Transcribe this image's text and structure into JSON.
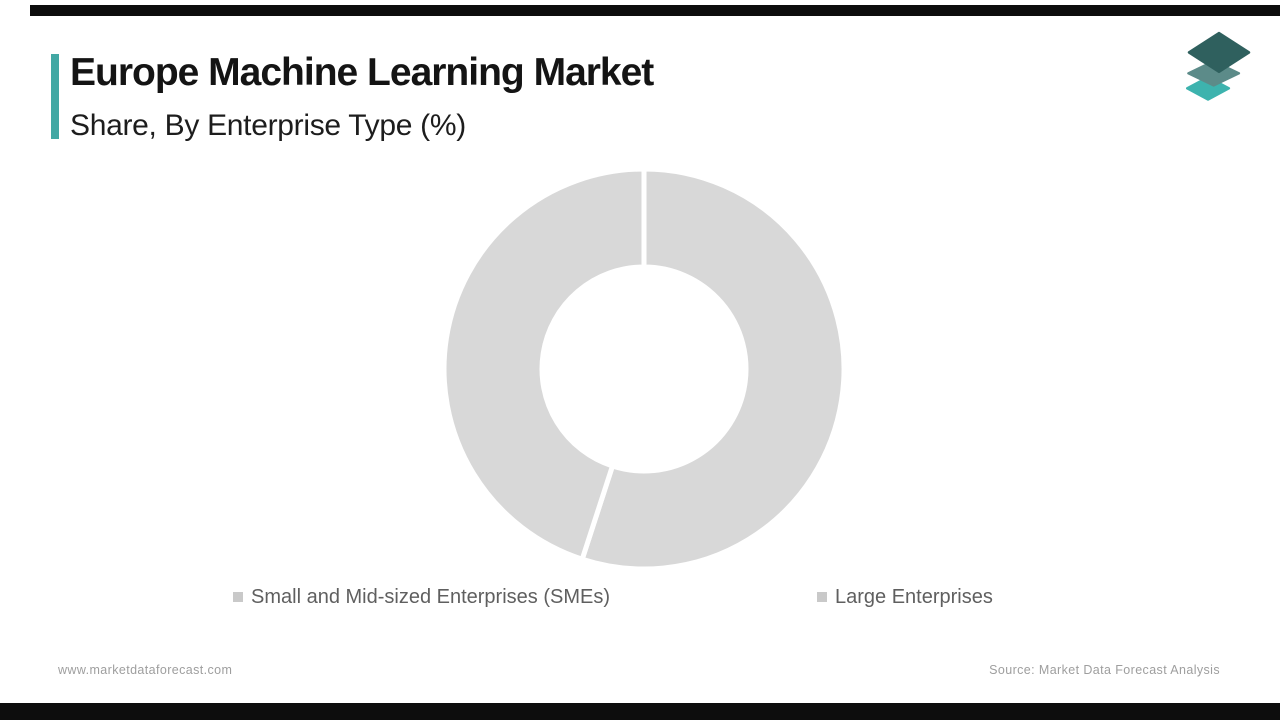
{
  "header": {
    "title": "Europe Machine Learning Market",
    "subtitle": "Share, By Enterprise Type (%)",
    "accent_color": "#42a8a4"
  },
  "logo": {
    "name": "market-data-forecast-layers-logo",
    "layer_colors": [
      "#3db3ae",
      "#5c8b89",
      "#2f605e"
    ]
  },
  "chart_data": {
    "type": "pie",
    "subtype": "donut",
    "title": "Europe Machine Learning Market Share, By Enterprise Type (%)",
    "unit": "%",
    "segments": [
      {
        "label": "Small and Mid-sized Enterprises (SMEs)",
        "value": 55,
        "color": "#d8d8d8"
      },
      {
        "label": "Large Enterprises",
        "value": 45,
        "color": "#d8d8d8"
      }
    ],
    "start_angle_deg": 0,
    "direction": "clockwise",
    "inner_radius_ratio": 0.51,
    "separator_color": "#ffffff",
    "separator_width": 5,
    "data_labels_shown": false,
    "legend_position": "bottom",
    "legend_marker_color": "#c9c9c9",
    "note_values_estimated_from_arc_angles": true
  },
  "footer": {
    "website": "www.marketdataforecast.com",
    "source": "Source: Market Data Forecast Analysis"
  }
}
